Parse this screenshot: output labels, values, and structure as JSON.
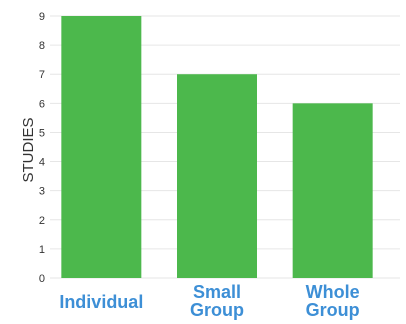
{
  "chart_data": {
    "type": "bar",
    "title": "",
    "xlabel": "",
    "ylabel": "STUDIES",
    "categories": [
      [
        "Individual"
      ],
      [
        "Small",
        "Group"
      ],
      [
        "Whole",
        "Group"
      ]
    ],
    "values": [
      9,
      7,
      6
    ],
    "ylim": [
      0,
      9
    ],
    "yticks": [
      0,
      1,
      2,
      3,
      4,
      5,
      6,
      7,
      8,
      9
    ],
    "grid": true,
    "legend": "none",
    "colors": {
      "bar": "#4cb84c",
      "category_label": "#3d8fd6",
      "grid": "#e6e6e6",
      "text": "#333333"
    }
  }
}
